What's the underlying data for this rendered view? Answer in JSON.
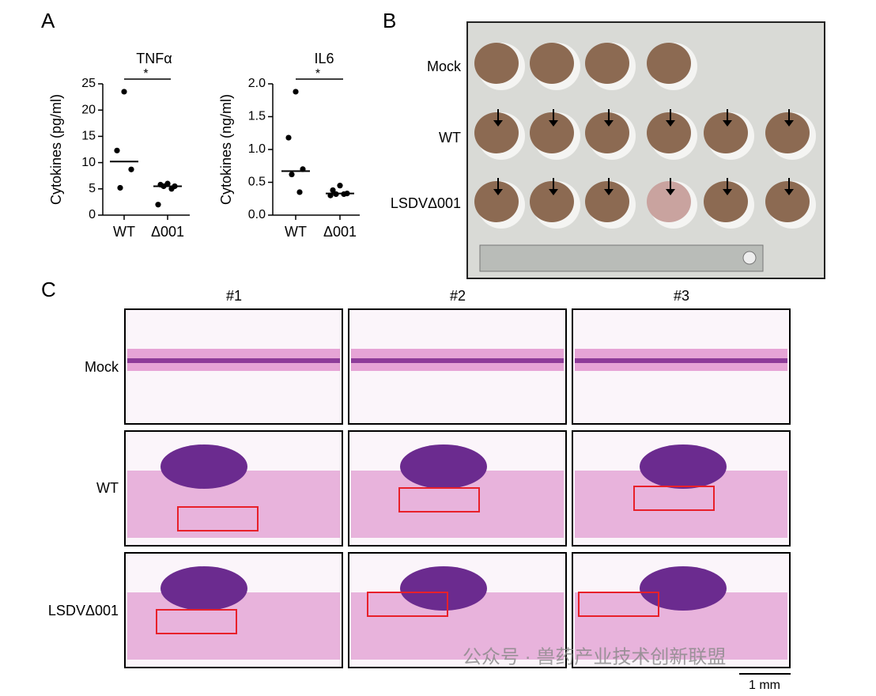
{
  "panel_labels": [
    "A",
    "B",
    "C"
  ],
  "chart_data": [
    {
      "type": "dotplot",
      "title": "TNFα",
      "y_label": "Cytokines (pg/ml)",
      "categories": [
        "WT",
        "Δ001"
      ],
      "values": [
        [
          23.5,
          12.3,
          8.7,
          5.2
        ],
        [
          6.0,
          5.8,
          5.5,
          5.5,
          5.0,
          2.0
        ]
      ],
      "medians": [
        10.2,
        5.5
      ],
      "significance": "*",
      "color": "#000000",
      "ylim": [
        0,
        25
      ],
      "yticks": [
        0,
        5,
        10,
        15,
        20,
        25
      ]
    },
    {
      "type": "dotplot",
      "title": "IL6",
      "y_label": "Cytokines (ng/ml)",
      "categories": [
        "WT",
        "Δ001"
      ],
      "values": [
        [
          1.88,
          1.18,
          0.7,
          0.62,
          0.35
        ],
        [
          0.45,
          0.38,
          0.33,
          0.32,
          0.32,
          0.3
        ]
      ],
      "medians": [
        0.67,
        0.33
      ],
      "significance": "*",
      "color": "#000000",
      "ylim": [
        0,
        2.0
      ],
      "yticks": [
        {
          "value": 0,
          "label": "0.0"
        },
        {
          "value": 0.5,
          "label": "0.5"
        },
        {
          "value": 1.0,
          "label": "1.0"
        },
        {
          "value": 1.5,
          "label": "1.5"
        },
        {
          "value": 2.0,
          "label": "2.0"
        }
      ]
    }
  ],
  "panel_b": {
    "row_labels": [
      "Mock",
      "WT",
      "LSDVΔ001"
    ]
  },
  "panel_c": {
    "column_labels": [
      "#1",
      "#2",
      "#3"
    ],
    "row_labels": [
      "Mock",
      "WT",
      "LSDVΔ001"
    ],
    "scale_bar": "1 mm"
  },
  "watermark": "公众号 · 兽药产业技术创新联盟"
}
